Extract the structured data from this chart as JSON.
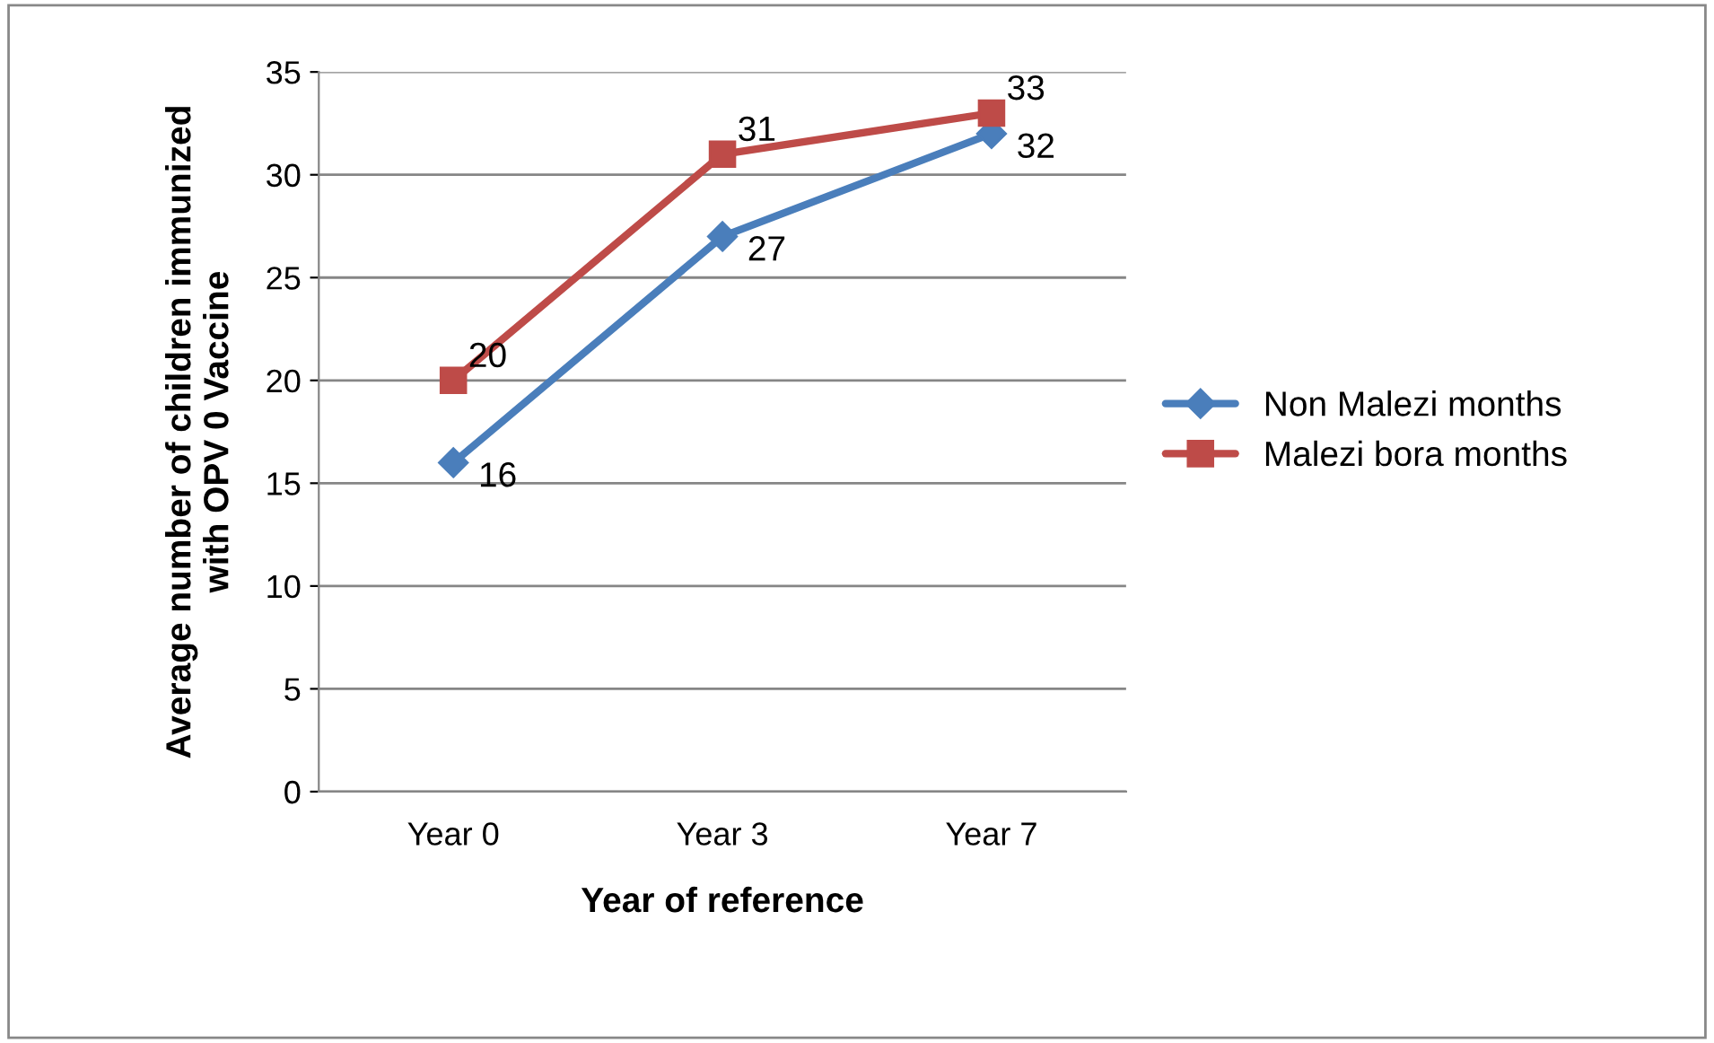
{
  "chart_data": {
    "type": "line",
    "xlabel": "Year of reference",
    "ylabel": "Average number of children immunized\nwith OPV 0 Vaccine",
    "categories": [
      "Year 0",
      "Year 3",
      "Year 7"
    ],
    "series": [
      {
        "name": "Non Malezi months",
        "color": "#4a7ebb",
        "marker": "diamond",
        "values": [
          16,
          27,
          32
        ]
      },
      {
        "name": "Malezi bora months",
        "color": "#be4b48",
        "marker": "square",
        "values": [
          20,
          31,
          33
        ]
      }
    ],
    "ylim": [
      0,
      35
    ],
    "yticks": [
      0,
      5,
      10,
      15,
      20,
      25,
      30,
      35
    ],
    "grid": "y",
    "legend": "right",
    "data_labels": true,
    "line_style": "solid"
  }
}
